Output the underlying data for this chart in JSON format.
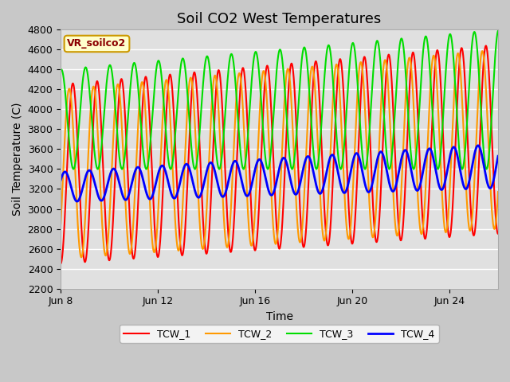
{
  "title": "Soil CO2 West Temperatures",
  "xlabel": "Time",
  "ylabel": "Soil Temperature (C)",
  "ylim": [
    2200,
    4800
  ],
  "total_days": 18,
  "xtick_labels": [
    "Jun 8",
    "Jun 12",
    "Jun 16",
    "Jun 20",
    "Jun 24"
  ],
  "xtick_positions": [
    0,
    4,
    8,
    12,
    16
  ],
  "ytick_values": [
    2200,
    2400,
    2600,
    2800,
    3000,
    3200,
    3400,
    3600,
    3800,
    4000,
    4200,
    4400,
    4600,
    4800
  ],
  "annotation_text": "VR_soilco2",
  "annotation_bg": "#ffffcc",
  "annotation_border": "#cc9900",
  "line_colors": {
    "TCW_1": "#ff0000",
    "TCW_2": "#ff9900",
    "TCW_3": "#00dd00",
    "TCW_4": "#0000ff"
  },
  "legend_labels": [
    "TCW_1",
    "TCW_2",
    "TCW_3",
    "TCW_4"
  ],
  "fig_facecolor": "#c8c8c8",
  "plot_bg": "#e0e0e0",
  "grid_color": "#ffffff",
  "title_fontsize": 13,
  "axis_label_fontsize": 10,
  "tick_fontsize": 9
}
